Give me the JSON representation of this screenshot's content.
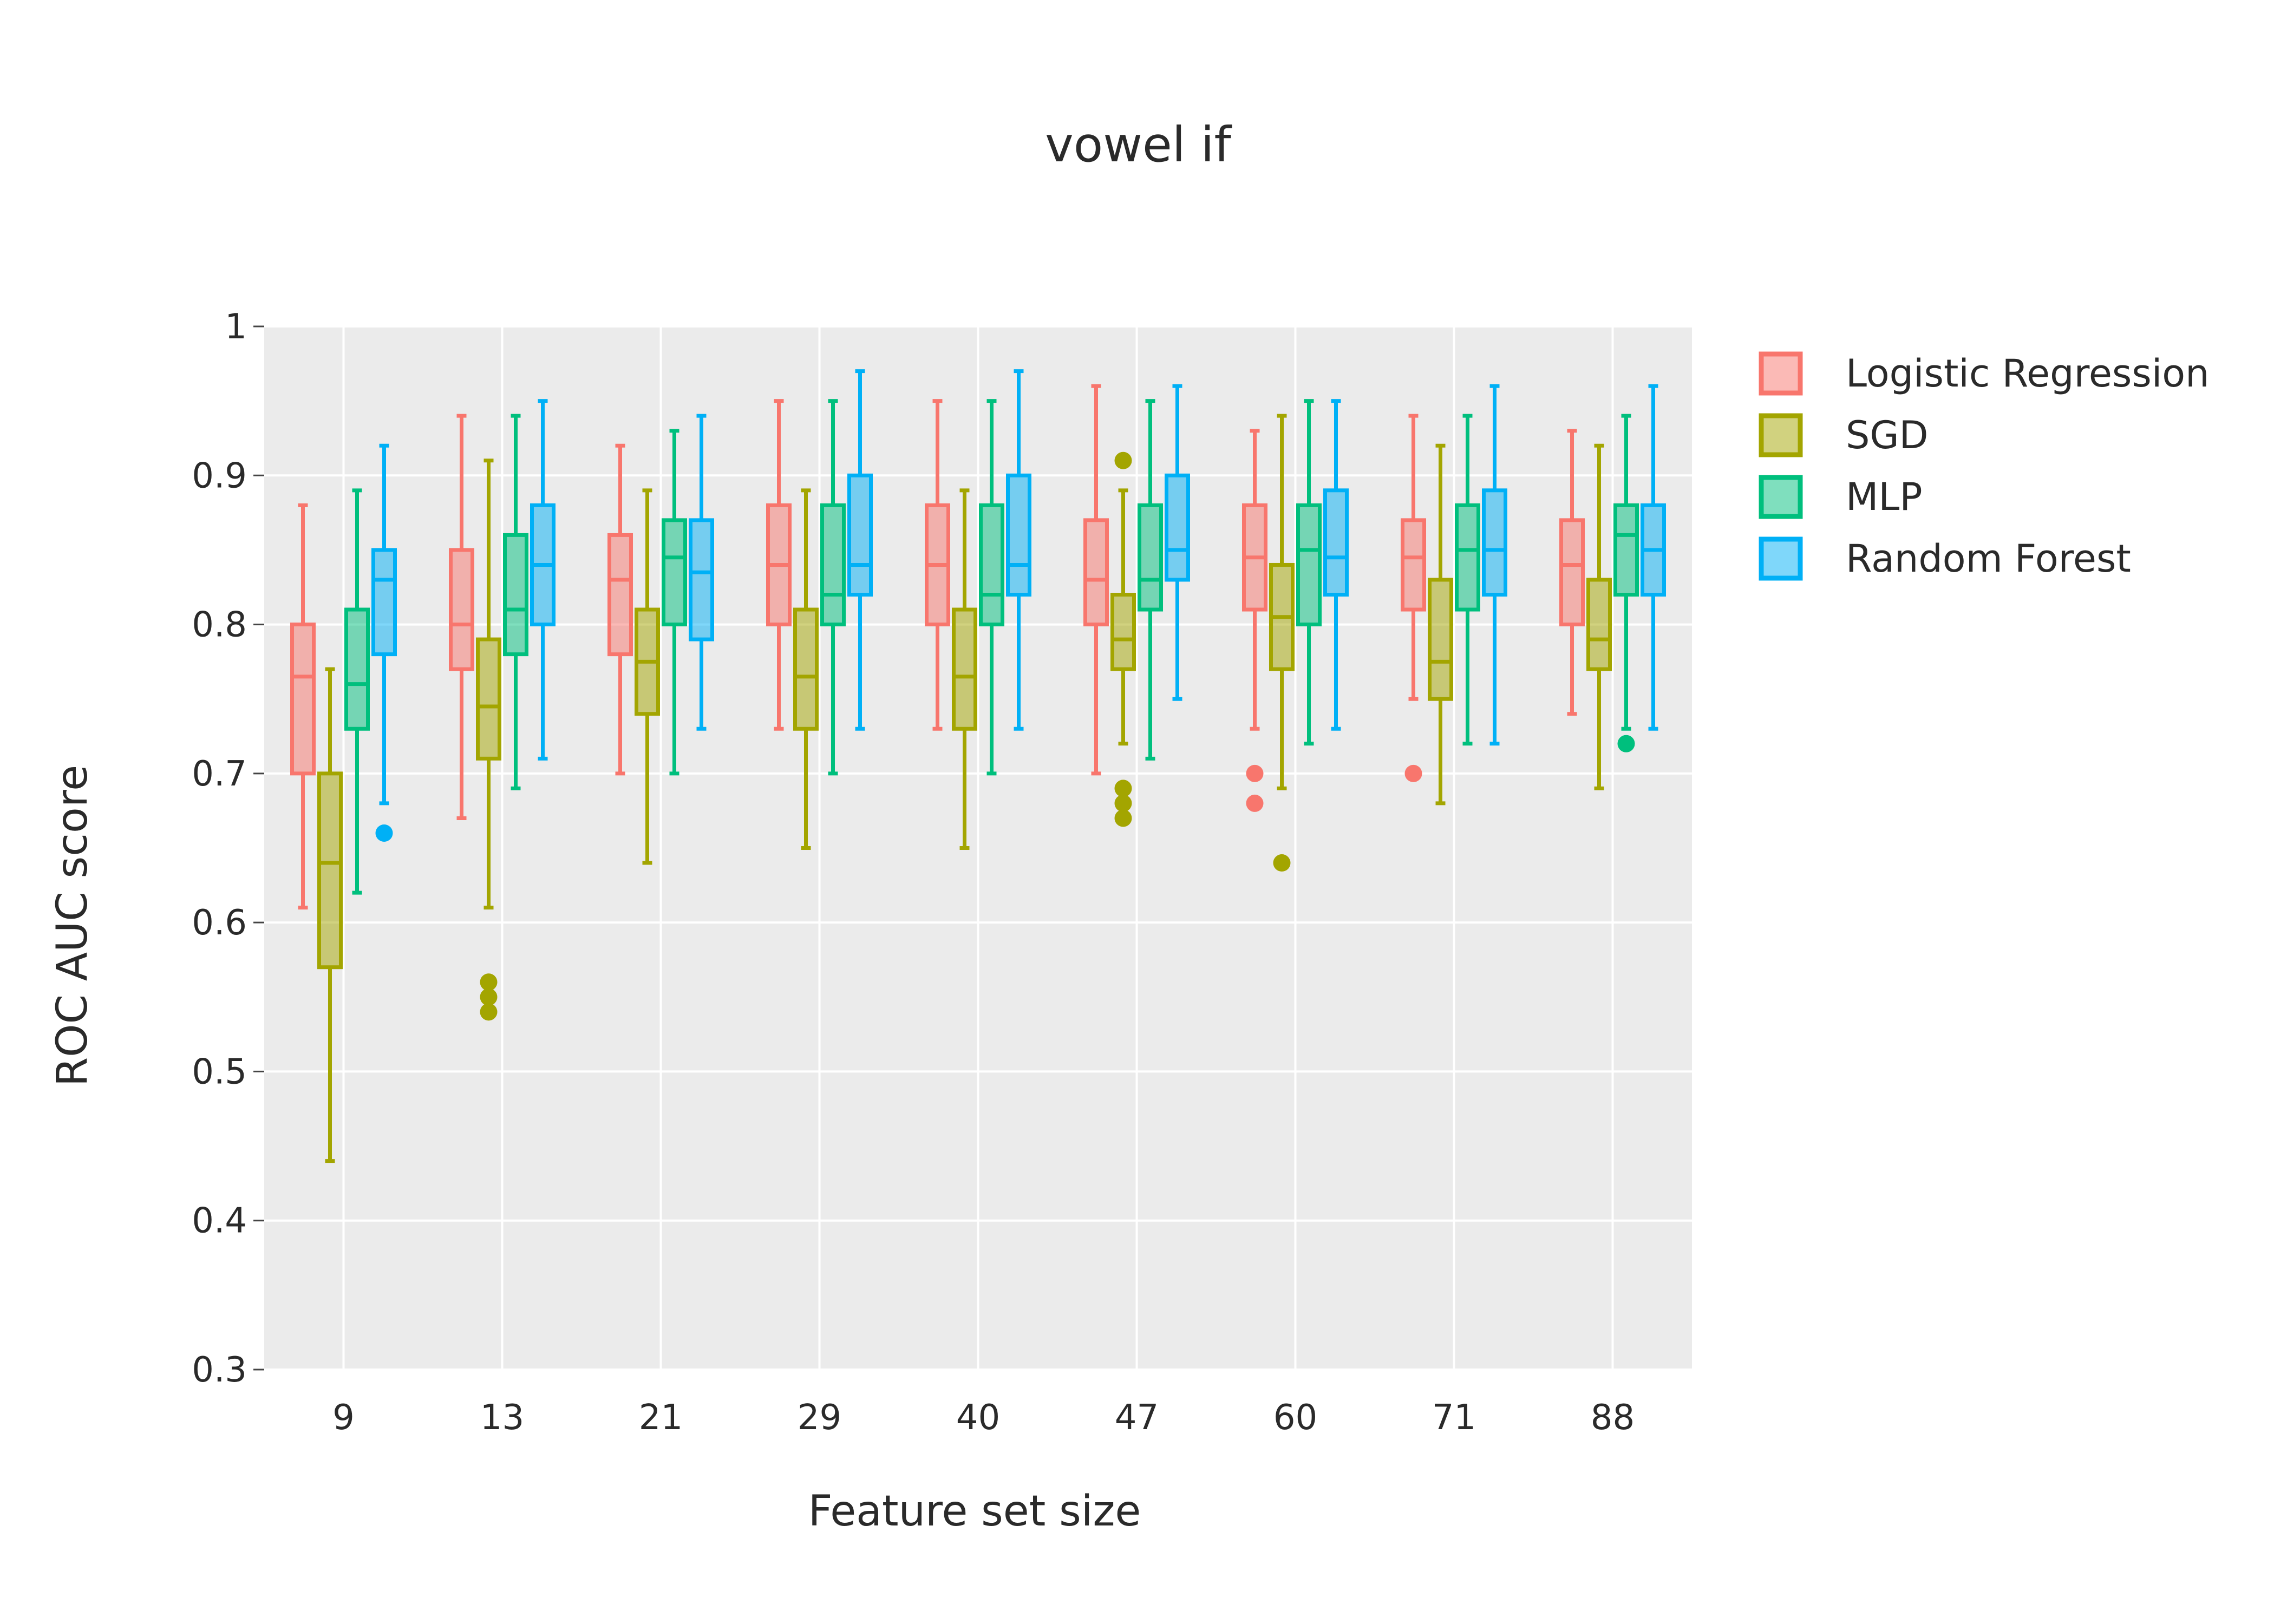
{
  "chart_data": {
    "type": "box",
    "title": "vowel if",
    "xlabel": "Feature set size",
    "ylabel": "ROC AUC score",
    "ylim": [
      0.3,
      1.0
    ],
    "yticks": [
      0.3,
      0.4,
      0.5,
      0.6,
      0.7,
      0.8,
      0.9,
      1
    ],
    "ytick_labels": [
      "0.3",
      "0.4",
      "0.5",
      "0.6",
      "0.7",
      "0.8",
      "0.9",
      "1"
    ],
    "categories": [
      "9",
      "13",
      "21",
      "29",
      "40",
      "47",
      "60",
      "71",
      "88"
    ],
    "grid": true,
    "legend_position": "right",
    "series": [
      {
        "name": "Logistic Regression",
        "color": "#F8766D",
        "boxes": [
          {
            "min": 0.61,
            "q1": 0.7,
            "median": 0.765,
            "q3": 0.8,
            "max": 0.88,
            "outliers": []
          },
          {
            "min": 0.67,
            "q1": 0.77,
            "median": 0.8,
            "q3": 0.85,
            "max": 0.94,
            "outliers": []
          },
          {
            "min": 0.7,
            "q1": 0.78,
            "median": 0.83,
            "q3": 0.86,
            "max": 0.92,
            "outliers": []
          },
          {
            "min": 0.73,
            "q1": 0.8,
            "median": 0.84,
            "q3": 0.88,
            "max": 0.95,
            "outliers": []
          },
          {
            "min": 0.73,
            "q1": 0.8,
            "median": 0.84,
            "q3": 0.88,
            "max": 0.95,
            "outliers": []
          },
          {
            "min": 0.7,
            "q1": 0.8,
            "median": 0.83,
            "q3": 0.87,
            "max": 0.96,
            "outliers": []
          },
          {
            "min": 0.73,
            "q1": 0.81,
            "median": 0.845,
            "q3": 0.88,
            "max": 0.93,
            "outliers": [
              0.7,
              0.68
            ]
          },
          {
            "min": 0.75,
            "q1": 0.81,
            "median": 0.845,
            "q3": 0.87,
            "max": 0.94,
            "outliers": [
              0.7
            ]
          },
          {
            "min": 0.74,
            "q1": 0.8,
            "median": 0.84,
            "q3": 0.87,
            "max": 0.93,
            "outliers": []
          }
        ]
      },
      {
        "name": "SGD",
        "color": "#A3A500",
        "boxes": [
          {
            "min": 0.44,
            "q1": 0.57,
            "median": 0.64,
            "q3": 0.7,
            "max": 0.77,
            "outliers": []
          },
          {
            "min": 0.61,
            "q1": 0.71,
            "median": 0.745,
            "q3": 0.79,
            "max": 0.91,
            "outliers": [
              0.56,
              0.55,
              0.54
            ]
          },
          {
            "min": 0.64,
            "q1": 0.74,
            "median": 0.775,
            "q3": 0.81,
            "max": 0.89,
            "outliers": []
          },
          {
            "min": 0.65,
            "q1": 0.73,
            "median": 0.765,
            "q3": 0.81,
            "max": 0.89,
            "outliers": []
          },
          {
            "min": 0.65,
            "q1": 0.73,
            "median": 0.765,
            "q3": 0.81,
            "max": 0.89,
            "outliers": []
          },
          {
            "min": 0.72,
            "q1": 0.77,
            "median": 0.79,
            "q3": 0.82,
            "max": 0.89,
            "outliers": [
              0.91,
              0.69,
              0.68,
              0.67
            ]
          },
          {
            "min": 0.69,
            "q1": 0.77,
            "median": 0.805,
            "q3": 0.84,
            "max": 0.94,
            "outliers": [
              0.64
            ]
          },
          {
            "min": 0.68,
            "q1": 0.75,
            "median": 0.775,
            "q3": 0.83,
            "max": 0.92,
            "outliers": []
          },
          {
            "min": 0.69,
            "q1": 0.77,
            "median": 0.79,
            "q3": 0.83,
            "max": 0.92,
            "outliers": []
          }
        ]
      },
      {
        "name": "MLP",
        "color": "#00BF7D",
        "boxes": [
          {
            "min": 0.62,
            "q1": 0.73,
            "median": 0.76,
            "q3": 0.81,
            "max": 0.89,
            "outliers": []
          },
          {
            "min": 0.69,
            "q1": 0.78,
            "median": 0.81,
            "q3": 0.86,
            "max": 0.94,
            "outliers": []
          },
          {
            "min": 0.7,
            "q1": 0.8,
            "median": 0.845,
            "q3": 0.87,
            "max": 0.93,
            "outliers": []
          },
          {
            "min": 0.7,
            "q1": 0.8,
            "median": 0.82,
            "q3": 0.88,
            "max": 0.95,
            "outliers": []
          },
          {
            "min": 0.7,
            "q1": 0.8,
            "median": 0.82,
            "q3": 0.88,
            "max": 0.95,
            "outliers": []
          },
          {
            "min": 0.71,
            "q1": 0.81,
            "median": 0.83,
            "q3": 0.88,
            "max": 0.95,
            "outliers": []
          },
          {
            "min": 0.72,
            "q1": 0.8,
            "median": 0.85,
            "q3": 0.88,
            "max": 0.95,
            "outliers": []
          },
          {
            "min": 0.72,
            "q1": 0.81,
            "median": 0.85,
            "q3": 0.88,
            "max": 0.94,
            "outliers": []
          },
          {
            "min": 0.73,
            "q1": 0.82,
            "median": 0.86,
            "q3": 0.88,
            "max": 0.94,
            "outliers": [
              0.72
            ]
          }
        ]
      },
      {
        "name": "Random Forest",
        "color": "#00B0F6",
        "boxes": [
          {
            "min": 0.68,
            "q1": 0.78,
            "median": 0.83,
            "q3": 0.85,
            "max": 0.92,
            "outliers": [
              0.66
            ]
          },
          {
            "min": 0.71,
            "q1": 0.8,
            "median": 0.84,
            "q3": 0.88,
            "max": 0.95,
            "outliers": []
          },
          {
            "min": 0.73,
            "q1": 0.79,
            "median": 0.835,
            "q3": 0.87,
            "max": 0.94,
            "outliers": []
          },
          {
            "min": 0.73,
            "q1": 0.82,
            "median": 0.84,
            "q3": 0.9,
            "max": 0.97,
            "outliers": []
          },
          {
            "min": 0.73,
            "q1": 0.82,
            "median": 0.84,
            "q3": 0.9,
            "max": 0.97,
            "outliers": []
          },
          {
            "min": 0.75,
            "q1": 0.83,
            "median": 0.85,
            "q3": 0.9,
            "max": 0.96,
            "outliers": []
          },
          {
            "min": 0.73,
            "q1": 0.82,
            "median": 0.845,
            "q3": 0.89,
            "max": 0.95,
            "outliers": []
          },
          {
            "min": 0.72,
            "q1": 0.82,
            "median": 0.85,
            "q3": 0.89,
            "max": 0.96,
            "outliers": []
          },
          {
            "min": 0.73,
            "q1": 0.82,
            "median": 0.85,
            "q3": 0.88,
            "max": 0.96,
            "outliers": []
          }
        ]
      }
    ]
  }
}
